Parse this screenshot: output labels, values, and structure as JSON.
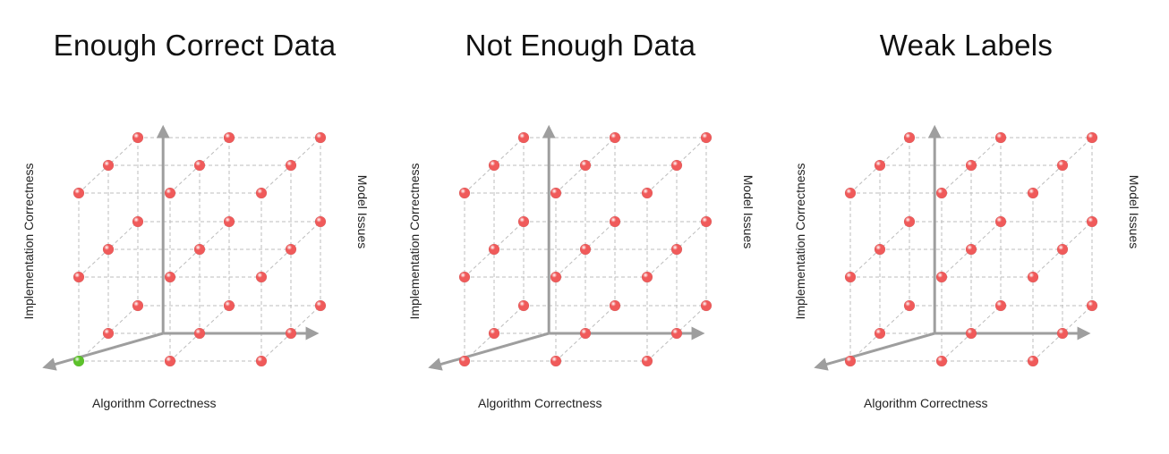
{
  "colors": {
    "grid": "#bdbdbd",
    "axis": "#9e9e9e",
    "point": "#f05a5a",
    "highlight": "#5cc22a"
  },
  "panels": [
    {
      "title": "Enough Correct Data",
      "xlabel": "Algorithm Correctness",
      "ylabel": "Implementation Correctness",
      "zlabel": "Model Issues",
      "points": [
        {
          "x": 0,
          "y": 0,
          "z": 0,
          "color": "highlight"
        },
        {
          "x": 1,
          "y": 0,
          "z": 0,
          "color": "point"
        },
        {
          "x": 2,
          "y": 0,
          "z": 0,
          "color": "point"
        },
        {
          "x": 0,
          "y": 1,
          "z": 0,
          "color": "point"
        },
        {
          "x": 1,
          "y": 1,
          "z": 0,
          "color": "point"
        },
        {
          "x": 2,
          "y": 1,
          "z": 0,
          "color": "point"
        },
        {
          "x": 0,
          "y": 2,
          "z": 0,
          "color": "point"
        },
        {
          "x": 1,
          "y": 2,
          "z": 0,
          "color": "point"
        },
        {
          "x": 2,
          "y": 2,
          "z": 0,
          "color": "point"
        },
        {
          "x": 0,
          "y": 0,
          "z": 1,
          "color": "point"
        },
        {
          "x": 1,
          "y": 0,
          "z": 1,
          "color": "point"
        },
        {
          "x": 2,
          "y": 0,
          "z": 1,
          "color": "point"
        },
        {
          "x": 0,
          "y": 1,
          "z": 1,
          "color": "point"
        },
        {
          "x": 1,
          "y": 1,
          "z": 1,
          "color": "point"
        },
        {
          "x": 2,
          "y": 1,
          "z": 1,
          "color": "point"
        },
        {
          "x": 0,
          "y": 2,
          "z": 1,
          "color": "point"
        },
        {
          "x": 1,
          "y": 2,
          "z": 1,
          "color": "point"
        },
        {
          "x": 2,
          "y": 2,
          "z": 1,
          "color": "point"
        },
        {
          "x": 0,
          "y": 0,
          "z": 2,
          "color": "point"
        },
        {
          "x": 1,
          "y": 0,
          "z": 2,
          "color": "point"
        },
        {
          "x": 2,
          "y": 0,
          "z": 2,
          "color": "point"
        },
        {
          "x": 0,
          "y": 1,
          "z": 2,
          "color": "point"
        },
        {
          "x": 1,
          "y": 1,
          "z": 2,
          "color": "point"
        },
        {
          "x": 2,
          "y": 1,
          "z": 2,
          "color": "point"
        },
        {
          "x": 0,
          "y": 2,
          "z": 2,
          "color": "point"
        },
        {
          "x": 1,
          "y": 2,
          "z": 2,
          "color": "point"
        },
        {
          "x": 2,
          "y": 2,
          "z": 2,
          "color": "point"
        }
      ]
    },
    {
      "title": "Not Enough Data",
      "xlabel": "Algorithm Correctness",
      "ylabel": "Implementation Correctness",
      "zlabel": "Model Issues",
      "points": [
        {
          "x": 0,
          "y": 0,
          "z": 0,
          "color": "point"
        },
        {
          "x": 1,
          "y": 0,
          "z": 0,
          "color": "point"
        },
        {
          "x": 2,
          "y": 0,
          "z": 0,
          "color": "point"
        },
        {
          "x": 0,
          "y": 1,
          "z": 0,
          "color": "point"
        },
        {
          "x": 1,
          "y": 1,
          "z": 0,
          "color": "point"
        },
        {
          "x": 2,
          "y": 1,
          "z": 0,
          "color": "point"
        },
        {
          "x": 0,
          "y": 2,
          "z": 0,
          "color": "point"
        },
        {
          "x": 1,
          "y": 2,
          "z": 0,
          "color": "point"
        },
        {
          "x": 2,
          "y": 2,
          "z": 0,
          "color": "point"
        },
        {
          "x": 0,
          "y": 0,
          "z": 1,
          "color": "point"
        },
        {
          "x": 1,
          "y": 0,
          "z": 1,
          "color": "point"
        },
        {
          "x": 2,
          "y": 0,
          "z": 1,
          "color": "point"
        },
        {
          "x": 0,
          "y": 1,
          "z": 1,
          "color": "point"
        },
        {
          "x": 1,
          "y": 1,
          "z": 1,
          "color": "point"
        },
        {
          "x": 2,
          "y": 1,
          "z": 1,
          "color": "point"
        },
        {
          "x": 0,
          "y": 2,
          "z": 1,
          "color": "point"
        },
        {
          "x": 1,
          "y": 2,
          "z": 1,
          "color": "point"
        },
        {
          "x": 2,
          "y": 2,
          "z": 1,
          "color": "point"
        },
        {
          "x": 0,
          "y": 0,
          "z": 2,
          "color": "point"
        },
        {
          "x": 1,
          "y": 0,
          "z": 2,
          "color": "point"
        },
        {
          "x": 2,
          "y": 0,
          "z": 2,
          "color": "point"
        },
        {
          "x": 0,
          "y": 1,
          "z": 2,
          "color": "point"
        },
        {
          "x": 1,
          "y": 1,
          "z": 2,
          "color": "point"
        },
        {
          "x": 2,
          "y": 1,
          "z": 2,
          "color": "point"
        },
        {
          "x": 0,
          "y": 2,
          "z": 2,
          "color": "point"
        },
        {
          "x": 1,
          "y": 2,
          "z": 2,
          "color": "point"
        },
        {
          "x": 2,
          "y": 2,
          "z": 2,
          "color": "point"
        }
      ]
    },
    {
      "title": "Weak Labels",
      "xlabel": "Algorithm Correctness",
      "ylabel": "Implementation Correctness",
      "zlabel": "Model Issues",
      "points": [
        {
          "x": 0,
          "y": 0,
          "z": 0,
          "color": "point"
        },
        {
          "x": 1,
          "y": 0,
          "z": 0,
          "color": "point"
        },
        {
          "x": 2,
          "y": 0,
          "z": 0,
          "color": "point"
        },
        {
          "x": 0,
          "y": 1,
          "z": 0,
          "color": "point"
        },
        {
          "x": 1,
          "y": 1,
          "z": 0,
          "color": "point"
        },
        {
          "x": 2,
          "y": 1,
          "z": 0,
          "color": "point"
        },
        {
          "x": 0,
          "y": 2,
          "z": 0,
          "color": "point"
        },
        {
          "x": 1,
          "y": 2,
          "z": 0,
          "color": "point"
        },
        {
          "x": 2,
          "y": 2,
          "z": 0,
          "color": "point"
        },
        {
          "x": 0,
          "y": 0,
          "z": 1,
          "color": "point"
        },
        {
          "x": 1,
          "y": 0,
          "z": 1,
          "color": "point"
        },
        {
          "x": 2,
          "y": 0,
          "z": 1,
          "color": "point"
        },
        {
          "x": 0,
          "y": 1,
          "z": 1,
          "color": "point"
        },
        {
          "x": 1,
          "y": 1,
          "z": 1,
          "color": "point"
        },
        {
          "x": 2,
          "y": 1,
          "z": 1,
          "color": "point"
        },
        {
          "x": 0,
          "y": 2,
          "z": 1,
          "color": "point"
        },
        {
          "x": 1,
          "y": 2,
          "z": 1,
          "color": "point"
        },
        {
          "x": 2,
          "y": 2,
          "z": 1,
          "color": "point"
        },
        {
          "x": 0,
          "y": 0,
          "z": 2,
          "color": "point"
        },
        {
          "x": 1,
          "y": 0,
          "z": 2,
          "color": "point"
        },
        {
          "x": 2,
          "y": 0,
          "z": 2,
          "color": "point"
        },
        {
          "x": 0,
          "y": 1,
          "z": 2,
          "color": "point"
        },
        {
          "x": 1,
          "y": 1,
          "z": 2,
          "color": "point"
        },
        {
          "x": 2,
          "y": 1,
          "z": 2,
          "color": "point"
        },
        {
          "x": 0,
          "y": 2,
          "z": 2,
          "color": "point"
        },
        {
          "x": 1,
          "y": 2,
          "z": 2,
          "color": "point"
        },
        {
          "x": 2,
          "y": 2,
          "z": 2,
          "color": "point"
        }
      ]
    }
  ]
}
